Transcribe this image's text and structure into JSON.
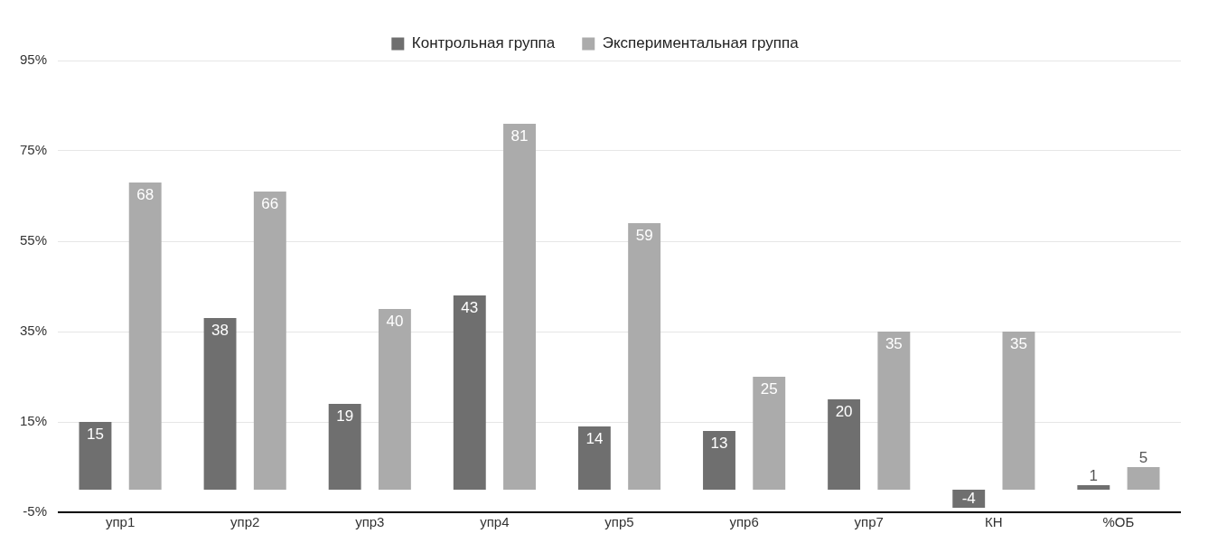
{
  "chart_data": {
    "type": "bar",
    "categories": [
      "упр1",
      "упр2",
      "упр3",
      "упр4",
      "упр5",
      "упр6",
      "упр7",
      "КН",
      "%ОБ"
    ],
    "series": [
      {
        "name": "Контрольная группа",
        "color": "#6f6f6f",
        "values": [
          15,
          38,
          19,
          43,
          14,
          13,
          20,
          -4,
          1
        ]
      },
      {
        "name": "Экспериментальная группа",
        "color": "#ababab",
        "values": [
          68,
          66,
          40,
          81,
          59,
          25,
          35,
          35,
          5
        ]
      }
    ],
    "ylim": [
      -5,
      95
    ],
    "yticks": [
      {
        "value": -5,
        "label": "-5%"
      },
      {
        "value": 15,
        "label": "15%"
      },
      {
        "value": 35,
        "label": "35%"
      },
      {
        "value": 55,
        "label": "55%"
      },
      {
        "value": 75,
        "label": "75%"
      },
      {
        "value": 95,
        "label": "95%"
      }
    ],
    "grid": "y",
    "legend": "top",
    "data_labels": true
  }
}
